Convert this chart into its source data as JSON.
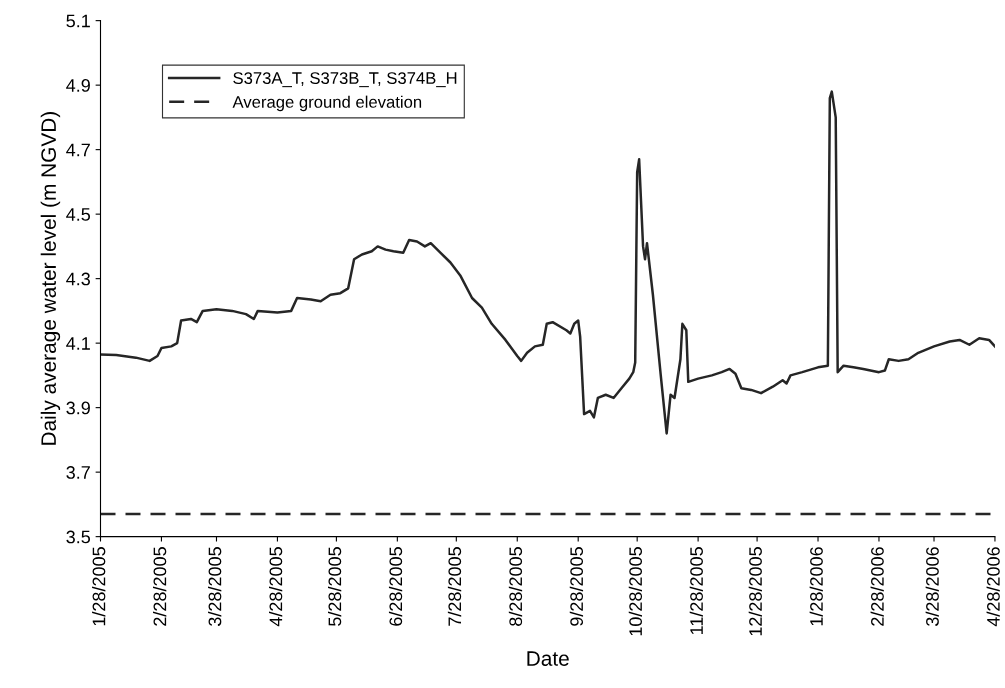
{
  "chart_data": {
    "type": "line",
    "xlabel": "Date",
    "ylabel": "Daily average water level (m NGVD)",
    "series": [
      {
        "name": "S373A_T, S373B_T, S374B_H",
        "color": "#262626",
        "line_style": "solid",
        "x": [
          "2005-01-28",
          "2005-02-05",
          "2005-02-15",
          "2005-02-22",
          "2005-02-26",
          "2005-02-28",
          "2005-03-05",
          "2005-03-08",
          "2005-03-10",
          "2005-03-15",
          "2005-03-18",
          "2005-03-21",
          "2005-03-28",
          "2005-04-05",
          "2005-04-12",
          "2005-04-16",
          "2005-04-18",
          "2005-04-28",
          "2005-05-05",
          "2005-05-08",
          "2005-05-15",
          "2005-05-20",
          "2005-05-25",
          "2005-05-30",
          "2005-06-03",
          "2005-06-06",
          "2005-06-10",
          "2005-06-15",
          "2005-06-18",
          "2005-06-22",
          "2005-06-26",
          "2005-07-01",
          "2005-07-04",
          "2005-07-08",
          "2005-07-12",
          "2005-07-15",
          "2005-07-20",
          "2005-07-25",
          "2005-07-30",
          "2005-08-05",
          "2005-08-10",
          "2005-08-15",
          "2005-08-22",
          "2005-08-28",
          "2005-08-30",
          "2005-09-02",
          "2005-09-06",
          "2005-09-10",
          "2005-09-12",
          "2005-09-15",
          "2005-09-22",
          "2005-09-24",
          "2005-09-26",
          "2005-09-28",
          "2005-09-29",
          "2005-10-01",
          "2005-10-04",
          "2005-10-06",
          "2005-10-08",
          "2005-10-12",
          "2005-10-16",
          "2005-10-20",
          "2005-10-24",
          "2005-10-26",
          "2005-10-27",
          "2005-10-28",
          "2005-10-29",
          "2005-10-31",
          "2005-11-01",
          "2005-11-02",
          "2005-11-05",
          "2005-11-09",
          "2005-11-12",
          "2005-11-14",
          "2005-11-16",
          "2005-11-19",
          "2005-11-20",
          "2005-11-22",
          "2005-11-23",
          "2005-11-28",
          "2005-12-05",
          "2005-12-10",
          "2005-12-14",
          "2005-12-17",
          "2005-12-20",
          "2005-12-25",
          "2005-12-30",
          "2006-01-05",
          "2006-01-10",
          "2006-01-12",
          "2006-01-14",
          "2006-01-20",
          "2006-01-28",
          "2006-02-02",
          "2006-02-03",
          "2006-02-04",
          "2006-02-06",
          "2006-02-07",
          "2006-02-10",
          "2006-02-15",
          "2006-02-20",
          "2006-02-28",
          "2006-03-03",
          "2006-03-05",
          "2006-03-10",
          "2006-03-15",
          "2006-03-20",
          "2006-03-28",
          "2006-04-05",
          "2006-04-10",
          "2006-04-15",
          "2006-04-20",
          "2006-04-25",
          "2006-04-28"
        ],
        "values": [
          4.065,
          4.063,
          4.055,
          4.045,
          4.06,
          4.085,
          4.09,
          4.1,
          4.17,
          4.175,
          4.165,
          4.2,
          4.205,
          4.2,
          4.19,
          4.175,
          4.2,
          4.195,
          4.2,
          4.24,
          4.235,
          4.23,
          4.25,
          4.255,
          4.27,
          4.36,
          4.375,
          4.385,
          4.4,
          4.39,
          4.385,
          4.38,
          4.42,
          4.415,
          4.4,
          4.41,
          4.38,
          4.35,
          4.31,
          4.24,
          4.21,
          4.16,
          4.11,
          4.06,
          4.045,
          4.07,
          4.09,
          4.095,
          4.16,
          4.165,
          4.14,
          4.13,
          4.16,
          4.17,
          4.12,
          3.88,
          3.89,
          3.87,
          3.93,
          3.94,
          3.93,
          3.96,
          3.99,
          4.01,
          4.04,
          4.63,
          4.67,
          4.4,
          4.36,
          4.41,
          4.25,
          4.0,
          3.82,
          3.94,
          3.93,
          4.05,
          4.16,
          4.14,
          3.98,
          3.99,
          4.0,
          4.01,
          4.02,
          4.005,
          3.96,
          3.955,
          3.945,
          3.965,
          3.985,
          3.975,
          4.0,
          4.01,
          4.025,
          4.03,
          4.86,
          4.88,
          4.8,
          4.01,
          4.03,
          4.025,
          4.02,
          4.01,
          4.015,
          4.05,
          4.045,
          4.05,
          4.07,
          4.09,
          4.105,
          4.11,
          4.095,
          4.115,
          4.11,
          4.09
        ]
      }
    ],
    "ref_lines": [
      {
        "axis": "y",
        "value": 3.57,
        "label": "Average ground elevation",
        "color": "#262626",
        "line_style": "dashed"
      }
    ],
    "xlim": [
      "2005-01-28",
      "2006-04-28"
    ],
    "xticks": [
      {
        "value": "2005-01-28",
        "label": "1/28/2005"
      },
      {
        "value": "2005-02-28",
        "label": "2/28/2005"
      },
      {
        "value": "2005-03-28",
        "label": "3/28/2005"
      },
      {
        "value": "2005-04-28",
        "label": "4/28/2005"
      },
      {
        "value": "2005-05-28",
        "label": "5/28/2005"
      },
      {
        "value": "2005-06-28",
        "label": "6/28/2005"
      },
      {
        "value": "2005-07-28",
        "label": "7/28/2005"
      },
      {
        "value": "2005-08-28",
        "label": "8/28/2005"
      },
      {
        "value": "2005-09-28",
        "label": "9/28/2005"
      },
      {
        "value": "2005-10-28",
        "label": "10/28/2005"
      },
      {
        "value": "2005-11-28",
        "label": "11/28/2005"
      },
      {
        "value": "2005-12-28",
        "label": "12/28/2005"
      },
      {
        "value": "2006-01-28",
        "label": "1/28/2006"
      },
      {
        "value": "2006-02-28",
        "label": "2/28/2006"
      },
      {
        "value": "2006-03-28",
        "label": "3/28/2006"
      },
      {
        "value": "2006-04-28",
        "label": "4/28/2006"
      }
    ],
    "ylim": [
      3.5,
      5.1
    ],
    "yticks": [
      3.5,
      3.7,
      3.9,
      4.1,
      4.3,
      4.5,
      4.7,
      4.9,
      5.1
    ],
    "grid": false,
    "legend": "top left",
    "marker": "none"
  }
}
